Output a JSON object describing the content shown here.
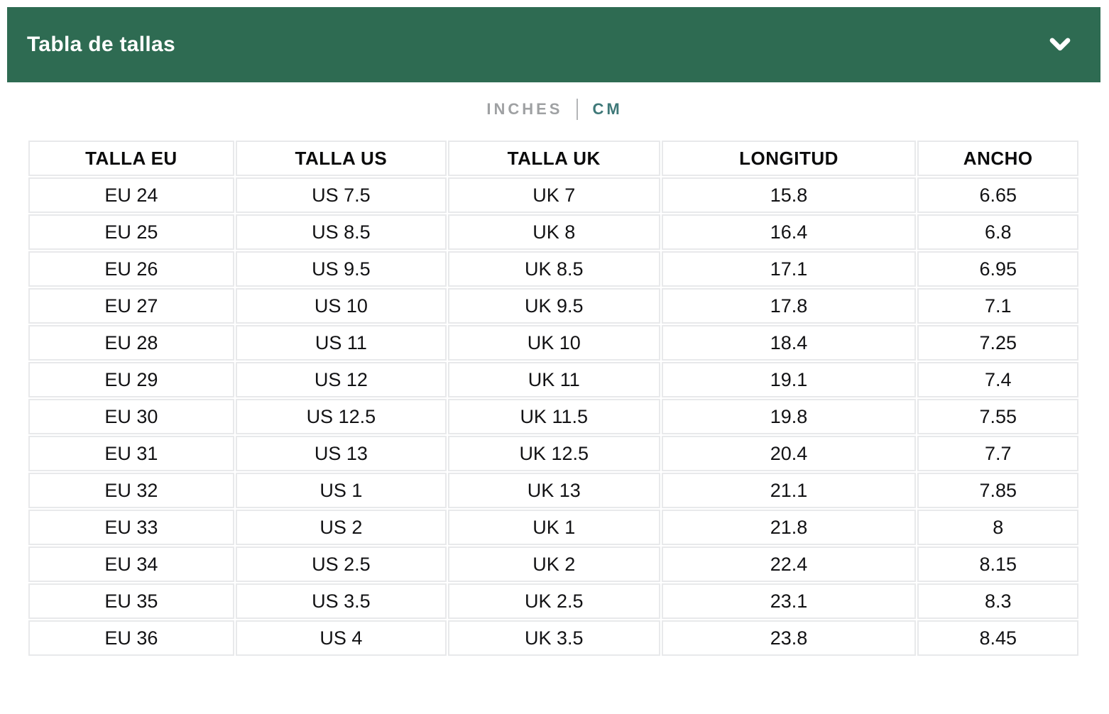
{
  "panel": {
    "title": "Tabla de tallas",
    "chevron_icon": "chevron-down"
  },
  "unit_toggle": {
    "inches_label": "INCHES",
    "cm_label": "CM",
    "separator": "|",
    "selected": "CM"
  },
  "colors": {
    "header_bg": "#2e6b52",
    "header_text": "#ffffff",
    "unit_selected": "#3e7878",
    "unit_unselected": "#9fa1a3",
    "table_border": "#e8e9eb",
    "cell_text": "#121214"
  },
  "table": {
    "headers": [
      "TALLA EU",
      "TALLA US",
      "TALLA UK",
      "LONGITUD",
      "ANCHO"
    ],
    "rows": [
      [
        "EU 24",
        "US 7.5",
        "UK 7",
        "15.8",
        "6.65"
      ],
      [
        "EU 25",
        "US 8.5",
        "UK 8",
        "16.4",
        "6.8"
      ],
      [
        "EU 26",
        "US 9.5",
        "UK 8.5",
        "17.1",
        "6.95"
      ],
      [
        "EU 27",
        "US 10",
        "UK 9.5",
        "17.8",
        "7.1"
      ],
      [
        "EU 28",
        "US 11",
        "UK 10",
        "18.4",
        "7.25"
      ],
      [
        "EU 29",
        "US 12",
        "UK 11",
        "19.1",
        "7.4"
      ],
      [
        "EU 30",
        "US 12.5",
        "UK 11.5",
        "19.8",
        "7.55"
      ],
      [
        "EU 31",
        "US 13",
        "UK 12.5",
        "20.4",
        "7.7"
      ],
      [
        "EU 32",
        "US 1",
        "UK 13",
        "21.1",
        "7.85"
      ],
      [
        "EU 33",
        "US 2",
        "UK 1",
        "21.8",
        "8"
      ],
      [
        "EU 34",
        "US 2.5",
        "UK 2",
        "22.4",
        "8.15"
      ],
      [
        "EU 35",
        "US 3.5",
        "UK 2.5",
        "23.1",
        "8.3"
      ],
      [
        "EU 36",
        "US 4",
        "UK 3.5",
        "23.8",
        "8.45"
      ]
    ]
  }
}
